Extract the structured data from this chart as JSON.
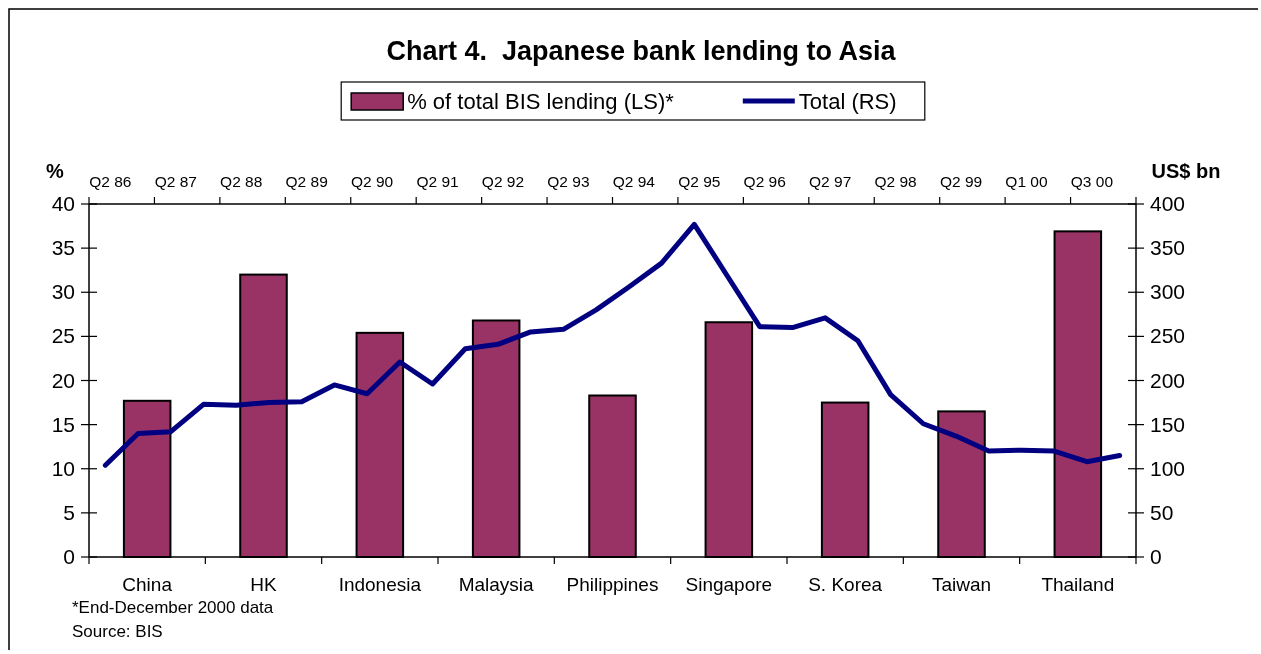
{
  "chart_data": [
    {
      "type": "bar",
      "title": "Chart 4.  Japanese bank lending to Asia",
      "ylabel": "%",
      "categories": [
        "China",
        "HK",
        "Indonesia",
        "Malaysia",
        "Philippines",
        "Singapore",
        "S. Korea",
        "Taiwan",
        "Thailand"
      ],
      "series": [
        {
          "name": "% of total BIS lending (LS)*",
          "color": "#993366",
          "values": [
            17.7,
            32.0,
            25.4,
            26.8,
            18.3,
            26.6,
            17.5,
            16.5,
            36.9
          ]
        }
      ],
      "ylim": [
        0,
        40
      ],
      "yticks": [
        0,
        5,
        10,
        15,
        20,
        25,
        30,
        35,
        40
      ],
      "legend": "top",
      "annotations": [
        "*End-December 2000 data",
        "Source: BIS"
      ]
    },
    {
      "type": "line",
      "ylabel": "US$ bn",
      "categories": [
        "Q2 86",
        null,
        "Q2 87",
        null,
        "Q2 88",
        null,
        "Q2 89",
        null,
        "Q2 90",
        null,
        "Q2 91",
        null,
        "Q2 92",
        null,
        "Q2 93",
        null,
        "Q2 94",
        null,
        "Q2 95",
        null,
        "Q2 96",
        null,
        "Q2 97",
        null,
        "Q2 98",
        null,
        "Q2 99",
        null,
        "Q1 00",
        null,
        "Q3 00",
        null
      ],
      "series": [
        {
          "name": "Total (RS)",
          "color": "#000080",
          "values": [
            104,
            140,
            142,
            173,
            172,
            175,
            176,
            195,
            185,
            221,
            196,
            236,
            241,
            255,
            258,
            280,
            306,
            333,
            377,
            319,
            261,
            260,
            271,
            245,
            184,
            151,
            137,
            120,
            121,
            120,
            108,
            115
          ]
        }
      ],
      "ylim": [
        0,
        400
      ],
      "yticks": [
        0,
        50,
        100,
        150,
        200,
        250,
        300,
        350,
        400
      ],
      "legend": "top"
    }
  ]
}
